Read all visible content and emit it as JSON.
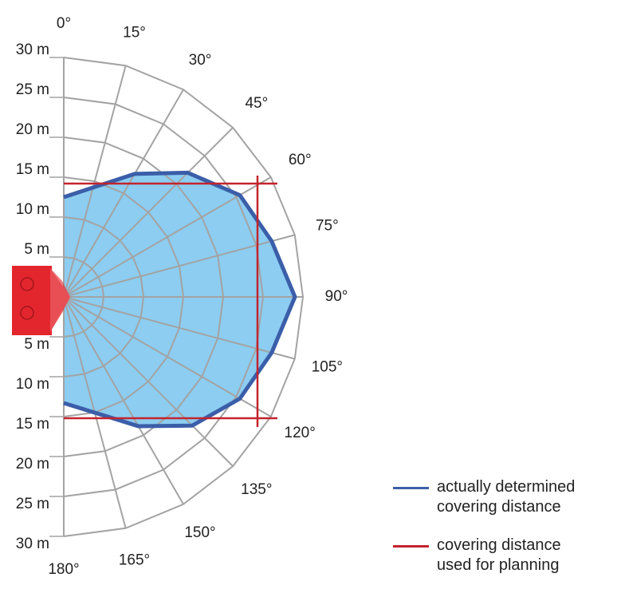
{
  "chart_data": {
    "type": "polar",
    "angle_ticks": [
      {
        "value": 0,
        "label": "0°"
      },
      {
        "value": 15,
        "label": "15°"
      },
      {
        "value": 30,
        "label": "30°"
      },
      {
        "value": 45,
        "label": "45°"
      },
      {
        "value": 60,
        "label": "60°"
      },
      {
        "value": 75,
        "label": "75°"
      },
      {
        "value": 90,
        "label": "90°"
      },
      {
        "value": 105,
        "label": "105°"
      },
      {
        "value": 120,
        "label": "120°"
      },
      {
        "value": 135,
        "label": "135°"
      },
      {
        "value": 150,
        "label": "150°"
      },
      {
        "value": 165,
        "label": "165°"
      },
      {
        "value": 180,
        "label": "180°"
      }
    ],
    "radial_ticks": [
      {
        "value": 5,
        "label": "5 m"
      },
      {
        "value": 10,
        "label": "10 m"
      },
      {
        "value": 15,
        "label": "15 m"
      },
      {
        "value": 20,
        "label": "20 m"
      },
      {
        "value": 25,
        "label": "25 m"
      },
      {
        "value": 30,
        "label": "30 m"
      }
    ],
    "rlim": [
      0,
      30
    ],
    "grid_color": "#a3a3a3",
    "series": [
      {
        "name": "actually determined covering distance",
        "color": "#3b5ea9",
        "fill": "#8ccdf1",
        "x": [
          0,
          30,
          45,
          60,
          75,
          90,
          105,
          120,
          135,
          150,
          180
        ],
        "values": [
          12.5,
          17.8,
          22,
          25.5,
          27,
          29,
          27,
          25.5,
          22.8,
          18.7,
          13.3
        ]
      },
      {
        "name": "covering distance used for planning",
        "color": "#c3242d",
        "depth": 24.3,
        "half_widths": [
          14.2,
          15.2
        ]
      }
    ]
  }
}
